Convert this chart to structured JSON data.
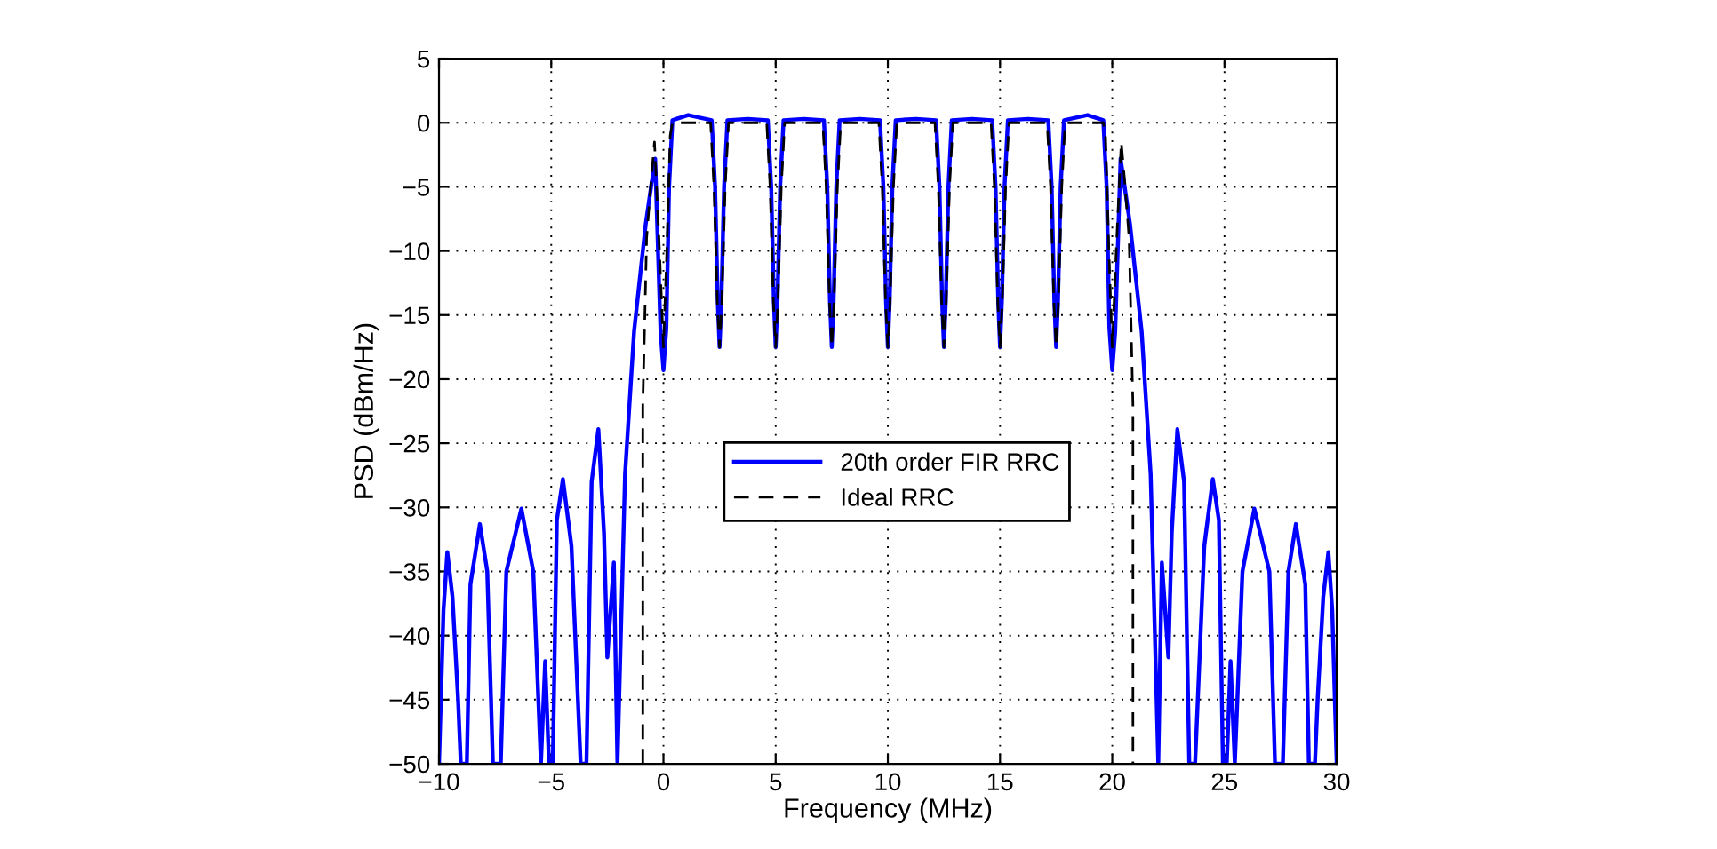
{
  "chart_data": {
    "type": "line",
    "xlabel": "Frequency (MHz)",
    "ylabel": "PSD (dBm/Hz)",
    "xlim": [
      -10,
      30
    ],
    "xticks": [
      -10,
      -5,
      0,
      5,
      10,
      15,
      20,
      25,
      30
    ],
    "ylim": [
      -50,
      5
    ],
    "yticks": [
      -50,
      -45,
      -40,
      -35,
      -30,
      -25,
      -20,
      -15,
      -10,
      -5,
      0,
      5
    ],
    "grid": true,
    "legend": "center",
    "series": [
      {
        "name": "20th order FIR RRC",
        "color": "#0000ff",
        "line_style": "solid",
        "x": [
          -10,
          -9.8,
          -9.63,
          -9.4,
          -9.15,
          -9.03,
          -8.76,
          -8.6,
          -8.18,
          -7.85,
          -7.6,
          -7.25,
          -7.0,
          -6.33,
          -5.8,
          -5.46,
          -5.27,
          -5.1,
          -4.93,
          -4.75,
          -4.48,
          -4.1,
          -3.69,
          -3.43,
          -3.2,
          -2.9,
          -2.65,
          -2.5,
          -2.21,
          -2.05,
          -1.71,
          -1.31,
          -0.79,
          -0.37,
          -0.13,
          0,
          0.13,
          0.25,
          0.4,
          1.1,
          2.15,
          2.3,
          2.42,
          2.5,
          2.58,
          2.7,
          2.85,
          3.75,
          4.65,
          4.8,
          4.92,
          5,
          5.08,
          5.2,
          5.35,
          6.25,
          7.15,
          7.3,
          7.42,
          7.5,
          7.58,
          7.7,
          7.85,
          8.75,
          9.65,
          9.8,
          9.92,
          10,
          10.08,
          10.2,
          10.35,
          11.25,
          12.15,
          12.3,
          12.42,
          12.5,
          12.58,
          12.7,
          12.85,
          13.75,
          14.65,
          14.8,
          14.92,
          15,
          15.08,
          15.2,
          15.35,
          16.25,
          17.15,
          17.3,
          17.42,
          17.5,
          17.58,
          17.7,
          17.85,
          18.9,
          19.6,
          19.75,
          19.87,
          20,
          20.13,
          20.37,
          20.79,
          21.31,
          21.71,
          22.05,
          22.21,
          22.5,
          22.65,
          22.9,
          23.2,
          23.43,
          23.69,
          24.1,
          24.48,
          24.75,
          24.93,
          25.1,
          25.27,
          25.46,
          25.8,
          26.33,
          27.0,
          27.25,
          27.6,
          27.85,
          28.18,
          28.6,
          28.76,
          29.03,
          29.15,
          29.4,
          29.63,
          29.8,
          30
        ],
        "values": [
          -50,
          -38,
          -33.5,
          -37,
          -45,
          -50,
          -50,
          -36,
          -31.3,
          -35,
          -50,
          -50,
          -35,
          -30.1,
          -35,
          -50,
          -42,
          -50,
          -50,
          -31,
          -27.8,
          -33,
          -50,
          -50,
          -28,
          -23.9,
          -32,
          -41.7,
          -34.3,
          -50,
          -27.4,
          -16.3,
          -7.9,
          -2.8,
          -16.3,
          -19.3,
          -16,
          -5,
          0.2,
          0.6,
          0.2,
          -5,
          -14,
          -17.5,
          -14,
          -5,
          0.2,
          0.3,
          0.2,
          -5,
          -14,
          -17.5,
          -14,
          -5,
          0.2,
          0.3,
          0.2,
          -5,
          -14,
          -17.5,
          -14,
          -5,
          0.2,
          0.3,
          0.2,
          -5,
          -14,
          -17.5,
          -14,
          -5,
          0.2,
          0.3,
          0.2,
          -5,
          -14,
          -17.5,
          -14,
          -5,
          0.2,
          0.3,
          0.2,
          -5,
          -14,
          -17.5,
          -14,
          -5,
          0.2,
          0.3,
          0.2,
          -5,
          -14,
          -17.5,
          -14,
          -5,
          0.2,
          0.6,
          0.2,
          -5,
          -16,
          -19.3,
          -16.3,
          -2.8,
          -7.9,
          -16.3,
          -27.4,
          -50,
          -34.3,
          -41.7,
          -32,
          -23.9,
          -28,
          -50,
          -50,
          -33,
          -27.8,
          -31,
          -50,
          -50,
          -42,
          -50,
          -35,
          -30.1,
          -35,
          -50,
          -50,
          -35,
          -31.3,
          -36,
          -50,
          -50,
          -45,
          -37,
          -33.5,
          -38,
          -50
        ]
      },
      {
        "name": "Ideal RRC",
        "color": "#000000",
        "line_style": "dashed",
        "x": [
          -0.92,
          -0.92,
          -0.75,
          -0.55,
          -0.4,
          -0.2,
          0,
          0.15,
          0.3,
          0.4,
          2.1,
          2.25,
          2.4,
          2.5,
          2.6,
          2.75,
          2.9,
          4.6,
          4.75,
          4.9,
          5,
          5.1,
          5.25,
          5.4,
          7.1,
          7.25,
          7.4,
          7.5,
          7.6,
          7.75,
          7.9,
          9.6,
          9.75,
          9.9,
          10,
          10.1,
          10.25,
          10.4,
          12.1,
          12.25,
          12.4,
          12.5,
          12.6,
          12.75,
          12.9,
          14.6,
          14.75,
          14.9,
          15,
          15.1,
          15.25,
          15.4,
          17.1,
          17.25,
          17.4,
          17.5,
          17.6,
          17.75,
          17.9,
          19.6,
          19.7,
          19.85,
          20,
          20.2,
          20.4,
          20.55,
          20.75,
          20.92,
          20.92
        ],
        "values": [
          -50,
          -22,
          -9,
          -4.5,
          -1.5,
          -9,
          -17.5,
          -10,
          -1,
          0,
          0,
          -5,
          -14,
          -17.5,
          -14,
          -5,
          0,
          0,
          -5,
          -14,
          -17.5,
          -14,
          -5,
          0,
          0,
          -5,
          -14,
          -17.5,
          -14,
          -5,
          0,
          0,
          -5,
          -14,
          -17.5,
          -14,
          -5,
          0,
          0,
          -5,
          -14,
          -17.5,
          -14,
          -5,
          0,
          0,
          -5,
          -14,
          -17.5,
          -14,
          -5,
          0,
          0,
          -5,
          -14,
          -17.5,
          -14,
          -5,
          0,
          0,
          -1,
          -10,
          -17.5,
          -9,
          -1.5,
          -4.5,
          -9,
          -22,
          -50
        ]
      }
    ]
  }
}
